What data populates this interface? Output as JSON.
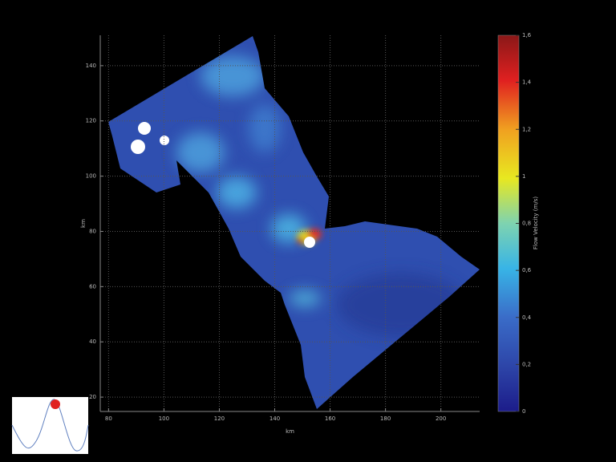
{
  "chart_data": {
    "type": "map",
    "x_label": "km",
    "y_label": "km",
    "xlim": [
      77,
      214
    ],
    "ylim": [
      14.8,
      151
    ],
    "xticks": [
      80,
      100,
      120,
      140,
      160,
      180,
      200
    ],
    "yticks": [
      20,
      40,
      60,
      80,
      100,
      120,
      140
    ],
    "grid": true,
    "colorbar": {
      "label": "Flow Velocity (m/s)",
      "lim": [
        0,
        1.6
      ],
      "ticks": [
        0,
        {
          "value": 0.2,
          "label": "0,2"
        },
        {
          "value": 0.4,
          "label": "0,4"
        },
        {
          "value": 0.6,
          "label": "0,6"
        },
        {
          "value": 0.8,
          "label": "0,8"
        },
        1,
        {
          "value": 1.2,
          "label": "1,2"
        },
        {
          "value": 1.4,
          "label": "1,4"
        },
        {
          "value": 1.6,
          "label": "1,6"
        }
      ]
    }
  }
}
